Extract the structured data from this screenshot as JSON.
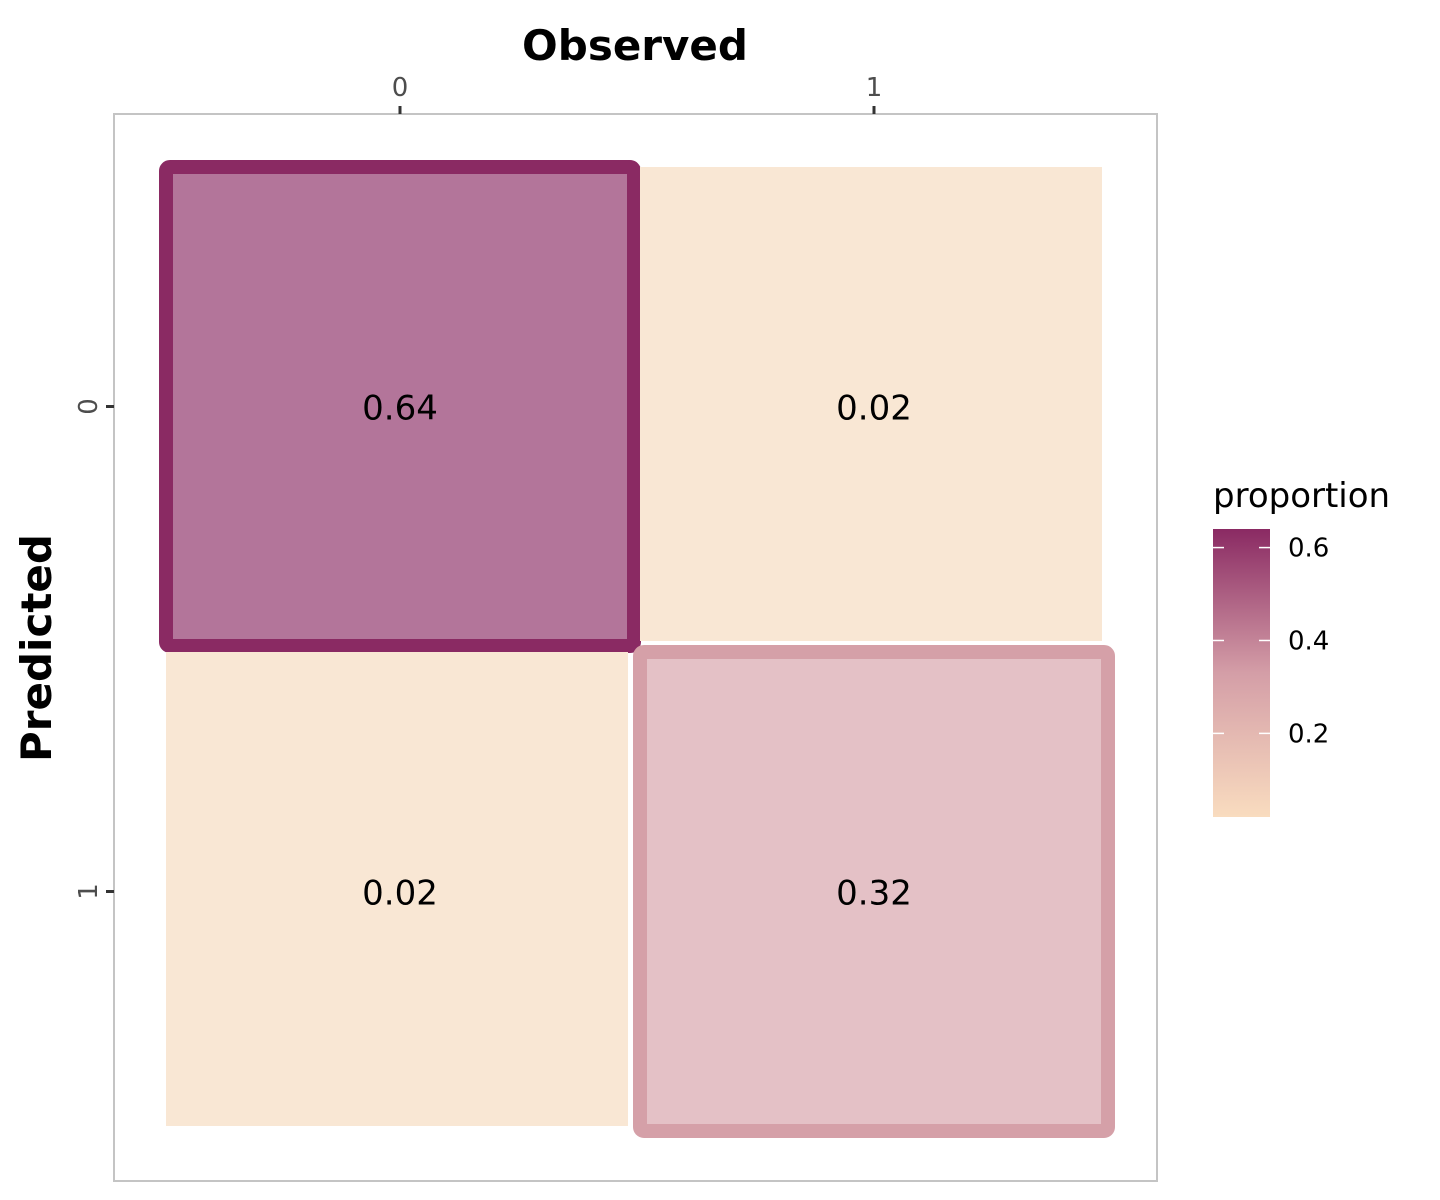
{
  "chart_data": {
    "type": "heatmap",
    "xlabel": "Observed",
    "ylabel": "Predicted",
    "x_categories": [
      "0",
      "1"
    ],
    "y_categories": [
      "0",
      "1"
    ],
    "cells": [
      {
        "predicted": "0",
        "observed": "0",
        "value": 0.64,
        "label": "0.64"
      },
      {
        "predicted": "0",
        "observed": "1",
        "value": 0.02,
        "label": "0.02"
      },
      {
        "predicted": "1",
        "observed": "0",
        "value": 0.02,
        "label": "0.02"
      },
      {
        "predicted": "1",
        "observed": "1",
        "value": 0.32,
        "label": "0.32"
      }
    ],
    "legend": {
      "title": "proportion",
      "position": "right",
      "ticks": [
        {
          "value": 0.6,
          "label": "0.6"
        },
        {
          "value": 0.4,
          "label": "0.4"
        },
        {
          "value": 0.2,
          "label": "0.2"
        }
      ],
      "range": [
        0.02,
        0.64
      ],
      "color_low": "#f9dcbf",
      "color_mid": "#d49ea7",
      "color_high": "#8a2a63"
    },
    "diagonal_border_color": "#8a2a63",
    "x_axis_position": "top",
    "grid": false,
    "panel_border_color": "#c4c4c4"
  }
}
